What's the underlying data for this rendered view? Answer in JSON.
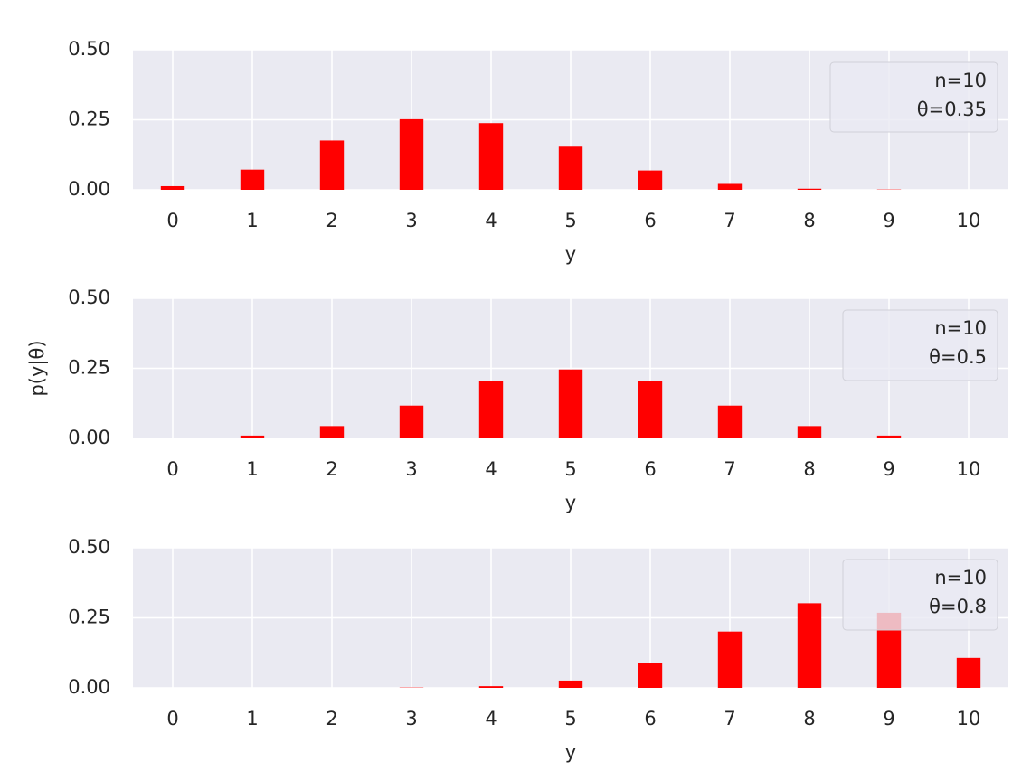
{
  "chart_data": [
    {
      "type": "bar",
      "x": [
        0,
        1,
        2,
        3,
        4,
        5,
        6,
        7,
        8,
        9,
        10
      ],
      "values": [
        0.013,
        0.072,
        0.176,
        0.252,
        0.238,
        0.154,
        0.069,
        0.021,
        0.004,
        0.001,
        0.0
      ],
      "color": "#ff0000",
      "xlim": [
        -0.5,
        10.5
      ],
      "xticks": [
        0,
        1,
        2,
        3,
        4,
        5,
        6,
        7,
        8,
        9,
        10
      ],
      "ylim": [
        0,
        0.5
      ],
      "yticks": [
        {
          "value": 0,
          "label": "0.00"
        },
        {
          "value": 0.25,
          "label": "0.25"
        },
        {
          "value": 0.5,
          "label": "0.50"
        }
      ],
      "xlabel": "y",
      "legend": [
        "n=10",
        "θ=0.35"
      ],
      "grid": true
    },
    {
      "type": "bar",
      "x": [
        0,
        1,
        2,
        3,
        4,
        5,
        6,
        7,
        8,
        9,
        10
      ],
      "values": [
        0.001,
        0.01,
        0.044,
        0.117,
        0.205,
        0.246,
        0.205,
        0.117,
        0.044,
        0.01,
        0.001
      ],
      "color": "#ff0000",
      "xlim": [
        -0.5,
        10.5
      ],
      "xticks": [
        0,
        1,
        2,
        3,
        4,
        5,
        6,
        7,
        8,
        9,
        10
      ],
      "ylim": [
        0,
        0.5
      ],
      "yticks": [
        {
          "value": 0,
          "label": "0.00"
        },
        {
          "value": 0.25,
          "label": "0.25"
        },
        {
          "value": 0.5,
          "label": "0.50"
        }
      ],
      "xlabel": "y",
      "ylabel": "p(y|θ)",
      "legend": [
        "n=10",
        "θ=0.5"
      ],
      "grid": true
    },
    {
      "type": "bar",
      "x": [
        0,
        1,
        2,
        3,
        4,
        5,
        6,
        7,
        8,
        9,
        10
      ],
      "values": [
        0.0,
        0.0,
        0.0,
        0.001,
        0.006,
        0.026,
        0.088,
        0.201,
        0.302,
        0.268,
        0.107
      ],
      "color": "#ff0000",
      "xlim": [
        -0.5,
        10.5
      ],
      "xticks": [
        0,
        1,
        2,
        3,
        4,
        5,
        6,
        7,
        8,
        9,
        10
      ],
      "ylim": [
        0,
        0.5
      ],
      "yticks": [
        {
          "value": 0,
          "label": "0.00"
        },
        {
          "value": 0.25,
          "label": "0.25"
        },
        {
          "value": 0.5,
          "label": "0.50"
        }
      ],
      "xlabel": "y",
      "legend": [
        "n=10",
        "θ=0.8"
      ],
      "grid": true
    }
  ]
}
